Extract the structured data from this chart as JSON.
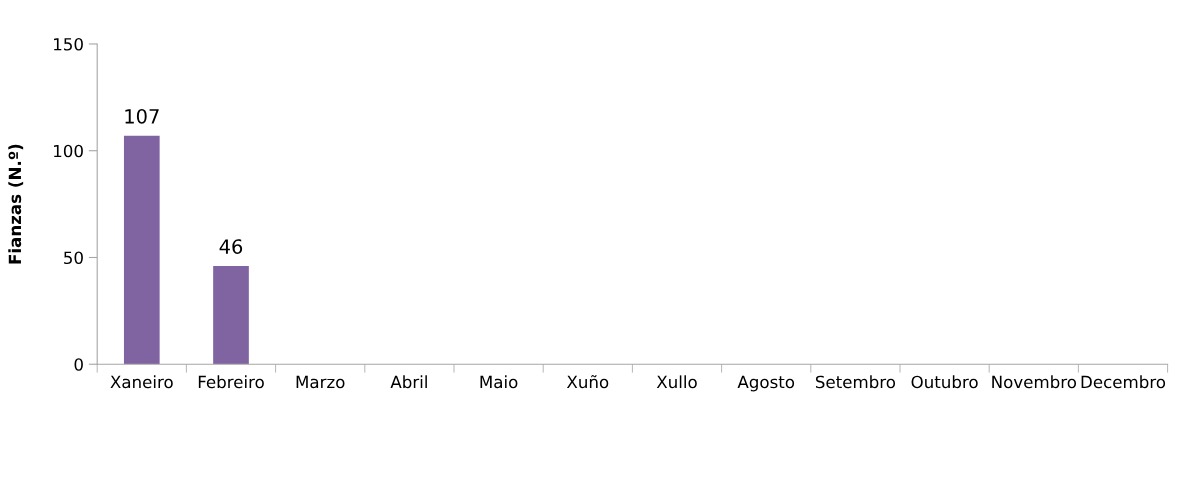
{
  "chart_data": {
    "type": "bar",
    "ylabel": "Fianzas (N.º)",
    "categories": [
      "Xaneiro",
      "Febreiro",
      "Marzo",
      "Abril",
      "Maio",
      "Xuño",
      "Xullo",
      "Agosto",
      "Setembro",
      "Outubro",
      "Novembro",
      "Decembro"
    ],
    "values": [
      107,
      46,
      null,
      null,
      null,
      null,
      null,
      null,
      null,
      null,
      null,
      null
    ],
    "color": "#8064a2",
    "ylim": [
      0,
      150
    ],
    "yticks": [
      0,
      50,
      100,
      150
    ],
    "data_labels": true,
    "grid": false,
    "legend": false
  }
}
